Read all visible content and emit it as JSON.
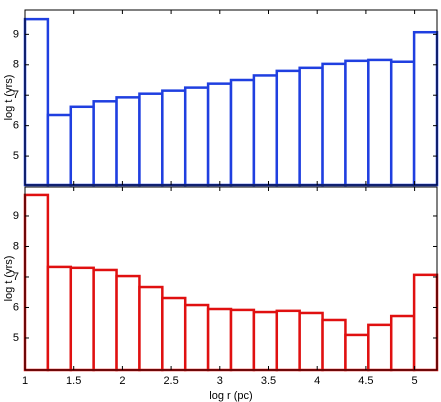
{
  "chart_data": [
    {
      "type": "histogram",
      "ylabel": "log t (yrs)",
      "color": "#1f3fe0",
      "bins": [
        1,
        1.235,
        1.47,
        1.705,
        1.94,
        2.175,
        2.41,
        2.645,
        2.88,
        3.115,
        3.35,
        3.585,
        3.82,
        4.055,
        4.29,
        4.525,
        4.76,
        4.995,
        5.23
      ],
      "values": [
        9.5,
        6.35,
        6.62,
        6.8,
        6.93,
        7.05,
        7.15,
        7.25,
        7.38,
        7.5,
        7.65,
        7.8,
        7.9,
        8.03,
        8.13,
        8.16,
        8.1,
        9.07
      ],
      "xlim": [
        1,
        5.23
      ],
      "ylim": [
        4.05,
        9.8
      ],
      "yticks": [
        5,
        6,
        7,
        8,
        9
      ]
    },
    {
      "type": "histogram",
      "ylabel": "log t (yrs)",
      "xlabel": "log r (pc)",
      "color": "#e01010",
      "bins": [
        1,
        1.235,
        1.47,
        1.705,
        1.94,
        2.175,
        2.41,
        2.645,
        2.88,
        3.115,
        3.35,
        3.585,
        3.82,
        4.055,
        4.29,
        4.525,
        4.76,
        4.995,
        5.23
      ],
      "values": [
        9.69,
        7.33,
        7.3,
        7.23,
        7.03,
        6.67,
        6.31,
        6.08,
        5.95,
        5.92,
        5.85,
        5.89,
        5.82,
        5.59,
        5.1,
        5.43,
        5.72,
        7.07
      ],
      "xlim": [
        1,
        5.23
      ],
      "ylim": [
        3.95,
        9.95
      ],
      "yticks": [
        5,
        6,
        7,
        8,
        9
      ],
      "xticks": [
        1,
        1.5,
        2,
        2.5,
        3,
        3.5,
        4,
        4.5,
        5
      ]
    }
  ]
}
